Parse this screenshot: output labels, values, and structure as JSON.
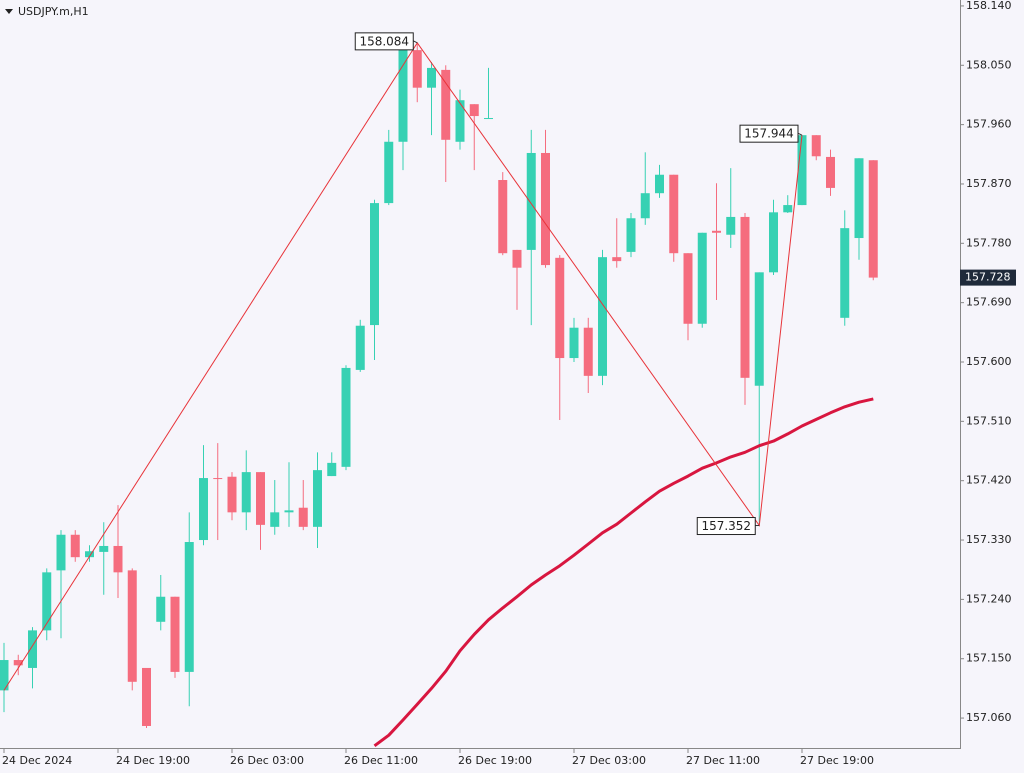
{
  "chart_data": {
    "type": "candlestick",
    "title": "USDJPY.m,H1",
    "categories": [
      "24 Dec 2024",
      null,
      null,
      null,
      null,
      null,
      null,
      null,
      "24 Dec 19:00",
      null,
      null,
      null,
      null,
      null,
      null,
      null,
      "26 Dec 03:00",
      null,
      null,
      null,
      null,
      null,
      null,
      null,
      "26 Dec 11:00",
      null,
      null,
      null,
      null,
      null,
      null,
      null,
      "26 Dec 19:00",
      null,
      null,
      null,
      null,
      null,
      null,
      null,
      "27 Dec 03:00",
      null,
      null,
      null,
      null,
      null,
      null,
      null,
      "27 Dec 11:00",
      null,
      null,
      null,
      null,
      null,
      null,
      null,
      "27 Dec 19:00",
      null,
      null,
      null,
      null,
      null
    ],
    "open": [
      157.102,
      157.148,
      157.136,
      157.193,
      157.284,
      157.338,
      157.304,
      157.312,
      157.321,
      157.284,
      157.136,
      157.206,
      157.244,
      157.13,
      157.33,
      157.424,
      157.426,
      157.372,
      157.433,
      157.35,
      157.372,
      157.379,
      157.35,
      157.427,
      157.441,
      157.588,
      157.656,
      157.841,
      157.934,
      158.073,
      158.016,
      158.043,
      157.934,
      157.991,
      157.97,
      157.876,
      157.77,
      157.77,
      157.917,
      157.758,
      157.606,
      157.652,
      157.579,
      157.759,
      157.767,
      157.818,
      157.856,
      157.884,
      157.765,
      157.658,
      157.799,
      157.793,
      157.82,
      157.564,
      157.736,
      157.827,
      157.838,
      157.944,
      157.911,
      157.667,
      157.788,
      157.906
    ],
    "high": [
      157.174,
      157.156,
      157.198,
      157.287,
      157.345,
      157.345,
      157.322,
      157.357,
      157.383,
      157.287,
      157.136,
      157.277,
      157.244,
      157.372,
      157.474,
      157.477,
      157.433,
      157.466,
      157.433,
      157.421,
      157.448,
      157.421,
      157.463,
      157.463,
      157.595,
      157.664,
      157.846,
      157.952,
      158.08,
      158.084,
      158.055,
      158.05,
      158.013,
      157.991,
      158.046,
      157.888,
      157.77,
      157.952,
      157.952,
      157.762,
      157.667,
      157.667,
      157.77,
      157.818,
      157.826,
      157.918,
      157.899,
      157.884,
      157.765,
      157.796,
      157.871,
      157.894,
      157.826,
      157.736,
      157.846,
      157.853,
      157.944,
      157.944,
      157.922,
      157.83,
      157.909,
      157.906
    ],
    "low": [
      157.069,
      157.125,
      157.105,
      157.178,
      157.181,
      157.297,
      157.297,
      157.247,
      157.242,
      157.102,
      157.045,
      157.193,
      157.121,
      157.078,
      157.322,
      157.33,
      157.36,
      157.345,
      157.315,
      157.338,
      157.35,
      157.345,
      157.318,
      157.427,
      157.436,
      157.585,
      157.603,
      157.838,
      157.891,
      157.994,
      157.944,
      157.873,
      157.922,
      157.891,
      157.97,
      157.762,
      157.679,
      157.656,
      157.743,
      157.512,
      157.6,
      157.553,
      157.565,
      157.743,
      157.759,
      157.808,
      157.849,
      157.752,
      157.633,
      157.652,
      157.694,
      157.773,
      157.535,
      157.352,
      157.732,
      157.826,
      157.838,
      157.906,
      157.852,
      157.655,
      157.755,
      157.724
    ],
    "close": [
      157.148,
      157.14,
      157.193,
      157.281,
      157.338,
      157.304,
      157.313,
      157.321,
      157.281,
      157.115,
      157.048,
      157.244,
      157.13,
      157.327,
      157.424,
      157.423,
      157.372,
      157.433,
      157.353,
      157.372,
      157.375,
      157.35,
      157.436,
      157.447,
      157.591,
      157.655,
      157.841,
      157.934,
      158.076,
      158.016,
      158.046,
      157.937,
      157.997,
      157.973,
      157.97,
      157.765,
      157.743,
      157.917,
      157.747,
      157.606,
      157.652,
      157.579,
      157.759,
      157.753,
      157.818,
      157.856,
      157.884,
      157.765,
      157.658,
      157.796,
      157.796,
      157.82,
      157.576,
      157.736,
      157.827,
      157.838,
      157.944,
      157.912,
      157.864,
      157.803,
      157.909,
      157.728
    ],
    "up_color": "#36d1b3",
    "down_color": "#f56c7e",
    "last_label": "157.728",
    "moving_average": {
      "color": "#d8163f",
      "values": [
        null,
        null,
        null,
        null,
        null,
        null,
        null,
        null,
        null,
        null,
        null,
        null,
        null,
        null,
        null,
        null,
        null,
        null,
        null,
        null,
        null,
        null,
        null,
        null,
        null,
        null,
        157.018,
        157.034,
        157.057,
        157.081,
        157.105,
        157.131,
        157.162,
        157.187,
        157.209,
        157.227,
        157.244,
        157.262,
        157.277,
        157.291,
        157.307,
        157.324,
        157.341,
        157.354,
        157.371,
        157.388,
        157.404,
        157.416,
        157.427,
        157.439,
        157.447,
        157.456,
        157.463,
        157.473,
        157.48,
        157.491,
        157.503,
        157.513,
        157.523,
        157.532,
        157.539,
        157.544
      ]
    },
    "zigzag": {
      "color": "#e8343a",
      "x": [
        0,
        29,
        53,
        56
      ],
      "values": [
        157.102,
        158.084,
        157.352,
        157.944
      ],
      "value_labels": [
        null,
        "158.084",
        "157.352",
        "157.944"
      ]
    },
    "ylim": [
      157.0146,
      158.149
    ],
    "yticks": [
      {
        "value": 158.14,
        "label": "158.140"
      },
      {
        "value": 158.05,
        "label": "158.050"
      },
      {
        "value": 157.96,
        "label": "157.960"
      },
      {
        "value": 157.87,
        "label": "157.870"
      },
      {
        "value": 157.78,
        "label": "157.780"
      },
      {
        "value": 157.69,
        "label": "157.690"
      },
      {
        "value": 157.6,
        "label": "157.600"
      },
      {
        "value": 157.51,
        "label": "157.510"
      },
      {
        "value": 157.42,
        "label": "157.420"
      },
      {
        "value": 157.33,
        "label": "157.330"
      },
      {
        "value": 157.24,
        "label": "157.240"
      },
      {
        "value": 157.15,
        "label": "157.150"
      },
      {
        "value": 157.06,
        "label": "157.060"
      }
    ]
  }
}
